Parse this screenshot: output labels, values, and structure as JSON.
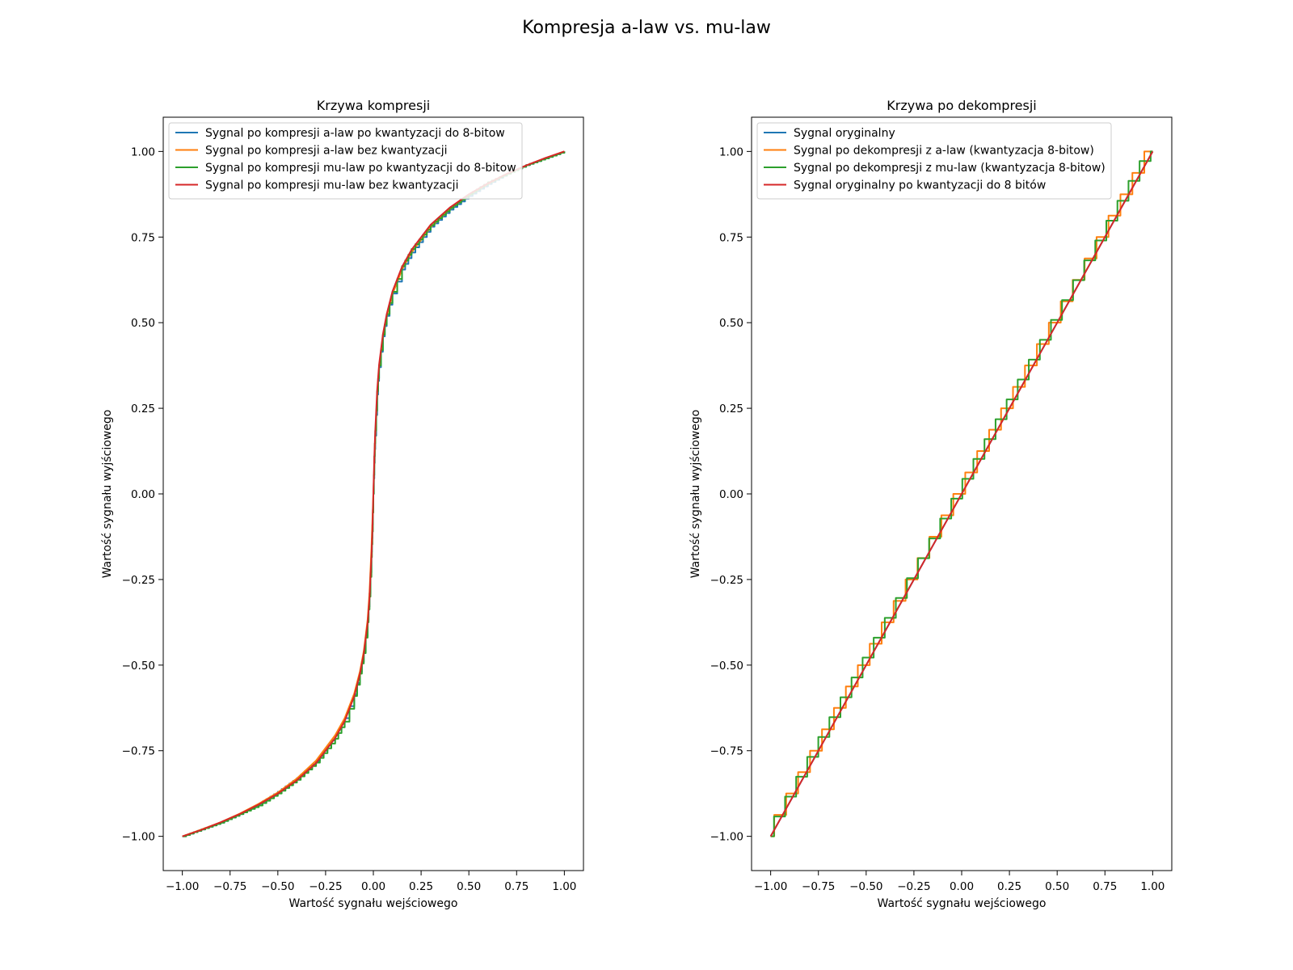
{
  "figure": {
    "title": "Kompresja a-law vs. mu-law"
  },
  "chart_data": [
    {
      "type": "line",
      "title": "Krzywa kompresji",
      "xlabel": "Wartość sygnału wejściowego",
      "ylabel": "Wartość sygnału wyjściowego",
      "xlim": [
        -1.1,
        1.1
      ],
      "ylim": [
        -1.1,
        1.1
      ],
      "xticks": [
        -1.0,
        -0.75,
        -0.5,
        -0.25,
        0.0,
        0.25,
        0.5,
        0.75,
        1.0
      ],
      "xtick_labels": [
        "−1.00",
        "−0.75",
        "−0.50",
        "−0.25",
        "0.00",
        "0.25",
        "0.50",
        "0.75",
        "1.00"
      ],
      "yticks": [
        -1.0,
        -0.75,
        -0.5,
        -0.25,
        0.0,
        0.25,
        0.5,
        0.75,
        1.0
      ],
      "ytick_labels": [
        "−1.00",
        "−0.75",
        "−0.50",
        "−0.25",
        "0.00",
        "0.25",
        "0.50",
        "0.75",
        "1.00"
      ],
      "grid": false,
      "legend_loc": "upper-left",
      "x": [
        -1.0,
        -0.9,
        -0.8,
        -0.7,
        -0.6,
        -0.5,
        -0.4,
        -0.3,
        -0.2,
        -0.15,
        -0.1,
        -0.07,
        -0.05,
        -0.03,
        -0.02,
        -0.01,
        -0.005,
        0.0,
        0.005,
        0.01,
        0.02,
        0.03,
        0.05,
        0.07,
        0.1,
        0.15,
        0.2,
        0.3,
        0.4,
        0.5,
        0.6,
        0.7,
        0.8,
        0.9,
        1.0
      ],
      "series": [
        {
          "name": "Sygnal po kompresji a-law po kwantyzacji do 8-bitow",
          "color": "#1f77b4",
          "values": [
            -1.0,
            -0.98,
            -0.96,
            -0.935,
            -0.905,
            -0.87,
            -0.83,
            -0.78,
            -0.705,
            -0.655,
            -0.585,
            -0.52,
            -0.46,
            -0.37,
            -0.29,
            -0.17,
            -0.09,
            0.0,
            0.09,
            0.17,
            0.29,
            0.37,
            0.46,
            0.52,
            0.585,
            0.655,
            0.705,
            0.78,
            0.83,
            0.87,
            0.905,
            0.935,
            0.96,
            0.98,
            1.0
          ]
        },
        {
          "name": "Sygnal po kompresji a-law bez kwantyzacji",
          "color": "#ff7f0e",
          "values": [
            -1.0,
            -0.98,
            -0.959,
            -0.934,
            -0.905,
            -0.872,
            -0.831,
            -0.779,
            -0.705,
            -0.655,
            -0.583,
            -0.518,
            -0.459,
            -0.368,
            -0.287,
            -0.16,
            -0.08,
            0.0,
            0.08,
            0.16,
            0.287,
            0.368,
            0.459,
            0.518,
            0.583,
            0.655,
            0.705,
            0.779,
            0.831,
            0.872,
            0.905,
            0.934,
            0.959,
            0.98,
            1.0
          ]
        },
        {
          "name": "Sygnal po kompresji mu-law po kwantyzacji do 8-bitow",
          "color": "#2ca02c",
          "values": [
            -1.0,
            -0.98,
            -0.96,
            -0.935,
            -0.91,
            -0.875,
            -0.835,
            -0.785,
            -0.715,
            -0.665,
            -0.59,
            -0.525,
            -0.465,
            -0.375,
            -0.3,
            -0.185,
            -0.11,
            0.0,
            0.11,
            0.185,
            0.3,
            0.375,
            0.465,
            0.525,
            0.59,
            0.665,
            0.715,
            0.785,
            0.835,
            0.875,
            0.91,
            0.935,
            0.96,
            0.98,
            1.0
          ]
        },
        {
          "name": "Sygnal po kompresji mu-law bez kwantyzacji",
          "color": "#d62728",
          "values": [
            -1.0,
            -0.981,
            -0.959,
            -0.935,
            -0.907,
            -0.875,
            -0.836,
            -0.786,
            -0.713,
            -0.663,
            -0.591,
            -0.525,
            -0.466,
            -0.377,
            -0.303,
            -0.184,
            -0.107,
            0.0,
            0.107,
            0.184,
            0.303,
            0.377,
            0.466,
            0.525,
            0.591,
            0.663,
            0.713,
            0.786,
            0.836,
            0.875,
            0.907,
            0.935,
            0.959,
            0.981,
            1.0
          ]
        }
      ]
    },
    {
      "type": "line",
      "title": "Krzywa po dekompresji",
      "xlabel": "Wartość sygnału wejściowego",
      "ylabel": "Wartość sygnału wyjściowego",
      "xlim": [
        -1.1,
        1.1
      ],
      "ylim": [
        -1.1,
        1.1
      ],
      "xticks": [
        -1.0,
        -0.75,
        -0.5,
        -0.25,
        0.0,
        0.25,
        0.5,
        0.75,
        1.0
      ],
      "xtick_labels": [
        "−1.00",
        "−0.75",
        "−0.50",
        "−0.25",
        "0.00",
        "0.25",
        "0.50",
        "0.75",
        "1.00"
      ],
      "yticks": [
        -1.0,
        -0.75,
        -0.5,
        -0.25,
        0.0,
        0.25,
        0.5,
        0.75,
        1.0
      ],
      "ytick_labels": [
        "−1.00",
        "−0.75",
        "−0.50",
        "−0.25",
        "0.00",
        "0.25",
        "0.50",
        "0.75",
        "1.00"
      ],
      "grid": false,
      "legend_loc": "upper-left",
      "x": [
        -1.0,
        -0.75,
        -0.5,
        -0.25,
        0.0,
        0.25,
        0.5,
        0.75,
        1.0
      ],
      "series": [
        {
          "name": "Sygnal oryginalny",
          "color": "#1f77b4",
          "values": [
            -1.0,
            -0.75,
            -0.5,
            -0.25,
            0.0,
            0.25,
            0.5,
            0.75,
            1.0
          ]
        },
        {
          "name": "Sygnal po dekompresji z a-law (kwantyzacja 8-bitow)",
          "color": "#ff7f0e",
          "values": [
            -1.0,
            -0.75,
            -0.5,
            -0.25,
            0.0,
            0.25,
            0.5,
            0.75,
            1.0
          ]
        },
        {
          "name": "Sygnal po dekompresji z mu-law (kwantyzacja 8-bitow)",
          "color": "#2ca02c",
          "values": [
            -1.0,
            -0.75,
            -0.5,
            -0.25,
            0.0,
            0.25,
            0.5,
            0.75,
            1.0
          ]
        },
        {
          "name": "Sygnal oryginalny po kwantyzacji do 8 bitów",
          "color": "#d62728",
          "values": [
            -1.0,
            -0.75,
            -0.5,
            -0.25,
            0.0,
            0.25,
            0.5,
            0.75,
            1.0
          ]
        }
      ]
    }
  ]
}
